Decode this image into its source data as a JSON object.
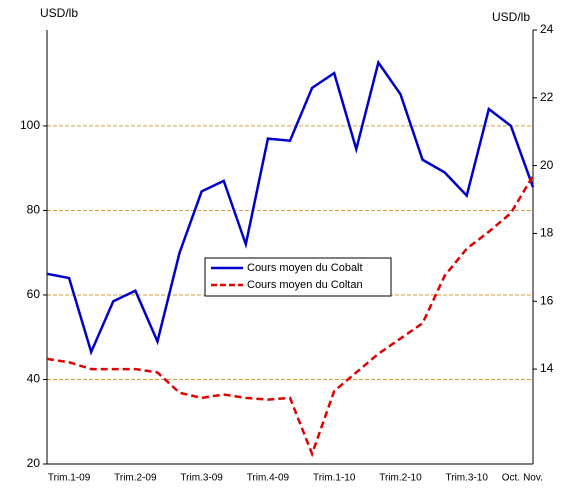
{
  "chart_data": {
    "type": "line",
    "ylabel": "USD/lb",
    "y2label": "USD/lb",
    "categories": [
      null,
      "Trim.1-09",
      null,
      null,
      "Trim.2-09",
      null,
      null,
      "Trim.3-09",
      null,
      null,
      "Trim.4-09",
      null,
      null,
      "Trim.1-10",
      null,
      null,
      "Trim.2-10",
      null,
      null,
      "Trim.3-10",
      null,
      "Oct.",
      "Nov."
    ],
    "series": [
      {
        "name": "Cours moyen du Cobalt",
        "color": "#0000cc",
        "dash": false,
        "values": [
          65,
          64,
          46.5,
          58.5,
          61,
          49,
          70,
          84.5,
          87,
          72,
          97,
          96.5,
          109,
          112.5,
          94.5,
          115,
          107.5,
          92,
          89,
          83.5,
          104,
          100,
          85.5
        ]
      },
      {
        "name": "Cours moyen du Coltan",
        "color": "#e00000",
        "dash": true,
        "axis": "y2",
        "values": [
          14.3,
          14.2,
          14.0,
          14.0,
          14.0,
          13.9,
          13.3,
          13.15,
          13.25,
          13.15,
          13.1,
          13.15,
          11.5,
          13.35,
          13.9,
          14.45,
          14.9,
          15.35,
          16.75,
          17.55,
          18.05,
          18.6,
          19.7
        ]
      }
    ],
    "ylim": [
      20,
      122.7
    ],
    "yticks": [
      20,
      40,
      60,
      80,
      100
    ],
    "y2lim": [
      11.2,
      24
    ],
    "y2ticks": [
      14,
      16,
      18,
      20,
      22,
      24
    ],
    "grid": true,
    "grid_color": "#d4a040"
  }
}
